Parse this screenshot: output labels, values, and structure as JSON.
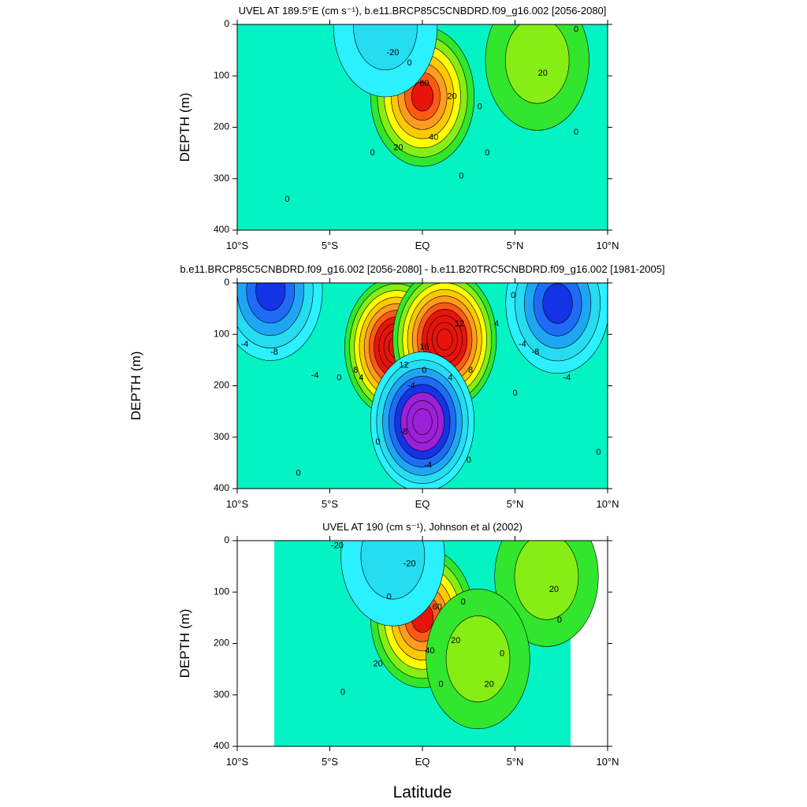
{
  "figure": {
    "xlabel": "Latitude"
  },
  "chart_data": [
    {
      "type": "heatmap",
      "title": "UVEL AT 189.5°E (cm s⁻¹), b.e11.BRCP85C5CNBDRD.f09_g16.002 [2056-2080]",
      "xlabel": "",
      "ylabel": "DEPTH (m)",
      "x_ticks": [
        "10°S",
        "5°S",
        "EQ",
        "5°N",
        "10°N"
      ],
      "y_ticks": [
        "0",
        "100",
        "200",
        "300",
        "400"
      ],
      "xlim": [
        -10,
        10
      ],
      "ylim": [
        400,
        0
      ],
      "contour_interval": 10,
      "features": [
        {
          "lat": 0.0,
          "depth": 140,
          "value": 75
        },
        {
          "lat": -2.0,
          "depth": 5,
          "value": -20
        },
        {
          "lat": 6.2,
          "depth": 70,
          "value": 25
        },
        {
          "lat": -8.0,
          "depth": 350,
          "value": 5
        }
      ],
      "contour_labels": [
        {
          "text": "-20",
          "lat": -1.6,
          "depth": 55
        },
        {
          "text": "0",
          "lat": -0.7,
          "depth": 75
        },
        {
          "text": "60",
          "lat": 0.1,
          "depth": 115
        },
        {
          "text": "20",
          "lat": 1.6,
          "depth": 140
        },
        {
          "text": "40",
          "lat": 0.6,
          "depth": 220
        },
        {
          "text": "20",
          "lat": -1.3,
          "depth": 240
        },
        {
          "text": "0",
          "lat": -2.7,
          "depth": 250
        },
        {
          "text": "0",
          "lat": 3.1,
          "depth": 160
        },
        {
          "text": "0",
          "lat": 3.5,
          "depth": 250
        },
        {
          "text": "0",
          "lat": 2.1,
          "depth": 295
        },
        {
          "text": "20",
          "lat": 6.5,
          "depth": 95
        },
        {
          "text": "0",
          "lat": 8.3,
          "depth": 10
        },
        {
          "text": "0",
          "lat": 8.3,
          "depth": 210
        },
        {
          "text": "0",
          "lat": -7.3,
          "depth": 340
        }
      ]
    },
    {
      "type": "heatmap",
      "title": "b.e11.BRCP85C5CNBDRD.f09_g16.002 [2056-2080] - b.e11.B20TRC5CNBDRD.f09_g16.002 [1981-2005]",
      "xlabel": "",
      "ylabel": "DEPTH (m)",
      "x_ticks": [
        "10°S",
        "5°S",
        "EQ",
        "5°N",
        "10°N"
      ],
      "y_ticks": [
        "0",
        "100",
        "200",
        "300",
        "400"
      ],
      "xlim": [
        -10,
        10
      ],
      "ylim": [
        400,
        0
      ],
      "contour_interval": 2,
      "features": [
        {
          "lat": -1.4,
          "depth": 125,
          "value": 20
        },
        {
          "lat": 1.2,
          "depth": 110,
          "value": 21
        },
        {
          "lat": 0.0,
          "depth": 270,
          "value": -16
        },
        {
          "lat": -8.2,
          "depth": 15,
          "value": -10
        },
        {
          "lat": 7.3,
          "depth": 40,
          "value": -10
        }
      ],
      "contour_labels": [
        {
          "text": "12",
          "lat": 2.0,
          "depth": 80
        },
        {
          "text": "16",
          "lat": 0.1,
          "depth": 125
        },
        {
          "text": "12",
          "lat": -1.0,
          "depth": 160
        },
        {
          "text": "8",
          "lat": -3.6,
          "depth": 170
        },
        {
          "text": "8",
          "lat": 2.6,
          "depth": 170
        },
        {
          "text": "4",
          "lat": -3.3,
          "depth": 185
        },
        {
          "text": "4",
          "lat": 1.5,
          "depth": 185
        },
        {
          "text": "4",
          "lat": 4.0,
          "depth": 80
        },
        {
          "text": "0",
          "lat": 0.1,
          "depth": 170
        },
        {
          "text": "0",
          "lat": -4.5,
          "depth": 185
        },
        {
          "text": "0",
          "lat": 4.9,
          "depth": 25
        },
        {
          "text": "0",
          "lat": 5.0,
          "depth": 215
        },
        {
          "text": "0",
          "lat": -2.4,
          "depth": 310
        },
        {
          "text": "0",
          "lat": 2.5,
          "depth": 345
        },
        {
          "text": "0",
          "lat": -6.7,
          "depth": 370
        },
        {
          "text": "0",
          "lat": 9.5,
          "depth": 330
        },
        {
          "text": "-4",
          "lat": -0.6,
          "depth": 200
        },
        {
          "text": "-8",
          "lat": -1.0,
          "depth": 290
        },
        {
          "text": "-4",
          "lat": 0.3,
          "depth": 355
        },
        {
          "text": "-4",
          "lat": -9.6,
          "depth": 120
        },
        {
          "text": "-8",
          "lat": -8.0,
          "depth": 135
        },
        {
          "text": "-4",
          "lat": -5.8,
          "depth": 180
        },
        {
          "text": "-4",
          "lat": 5.4,
          "depth": 120
        },
        {
          "text": "-8",
          "lat": 6.1,
          "depth": 135
        },
        {
          "text": "-4",
          "lat": 7.8,
          "depth": 185
        }
      ]
    },
    {
      "type": "heatmap",
      "title": "UVEL AT 190 (cm s⁻¹), Johnson et al (2002)",
      "xlabel": "Latitude",
      "ylabel": "DEPTH (m)",
      "x_ticks": [
        "10°S",
        "5°S",
        "EQ",
        "5°N",
        "10°N"
      ],
      "y_ticks": [
        "0",
        "100",
        "200",
        "300",
        "400"
      ],
      "xlim": [
        -10,
        10
      ],
      "ylim": [
        400,
        0
      ],
      "data_extent": [
        -8,
        8
      ],
      "contour_interval": 10,
      "features": [
        {
          "lat": 0.0,
          "depth": 150,
          "value": 72
        },
        {
          "lat": -1.6,
          "depth": 30,
          "value": -25
        },
        {
          "lat": 6.7,
          "depth": 70,
          "value": 25
        },
        {
          "lat": 3.0,
          "depth": 230,
          "value": 22
        },
        {
          "lat": -5.8,
          "depth": 270,
          "value": 5
        }
      ],
      "contour_labels": [
        {
          "text": "-20",
          "lat": -4.6,
          "depth": 10
        },
        {
          "text": "-20",
          "lat": -0.7,
          "depth": 45
        },
        {
          "text": "0",
          "lat": -1.8,
          "depth": 110
        },
        {
          "text": "60",
          "lat": 0.8,
          "depth": 130
        },
        {
          "text": "20",
          "lat": 1.8,
          "depth": 195
        },
        {
          "text": "40",
          "lat": 0.4,
          "depth": 215
        },
        {
          "text": "20",
          "lat": -2.4,
          "depth": 240
        },
        {
          "text": "0",
          "lat": 2.2,
          "depth": 120
        },
        {
          "text": "0",
          "lat": 4.3,
          "depth": 220
        },
        {
          "text": "0",
          "lat": 1.0,
          "depth": 280
        },
        {
          "text": "20",
          "lat": 3.6,
          "depth": 280
        },
        {
          "text": "0",
          "lat": -4.3,
          "depth": 295
        },
        {
          "text": "20",
          "lat": 7.1,
          "depth": 95
        },
        {
          "text": "0",
          "lat": 7.4,
          "depth": 155
        }
      ]
    }
  ]
}
